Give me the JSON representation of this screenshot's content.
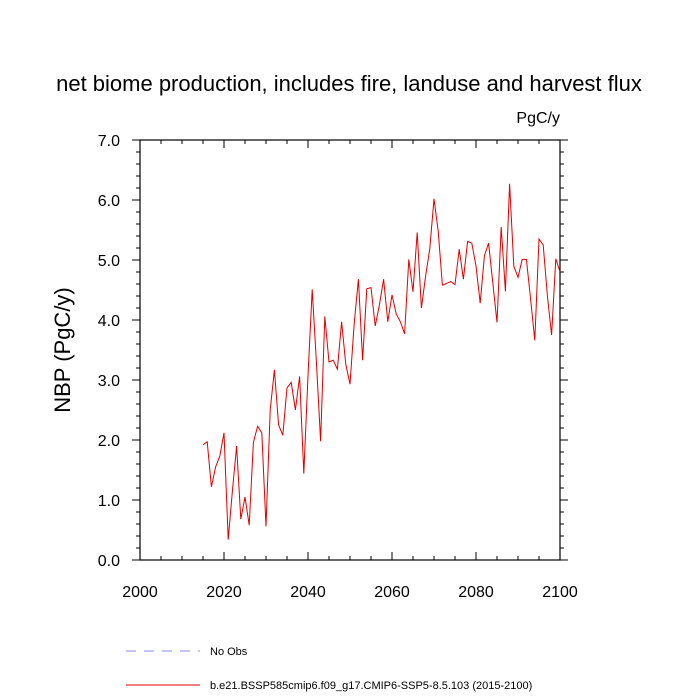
{
  "chart_data": {
    "type": "line",
    "title": "net biome production, includes fire, landuse and harvest flux",
    "units": "PgC/y",
    "ylabel": "NBP  (PgC/y)",
    "xlabel": "",
    "xlim": [
      2000,
      2100
    ],
    "ylim": [
      0.0,
      7.0
    ],
    "xticks": [
      2000,
      2020,
      2040,
      2060,
      2080,
      2100
    ],
    "xtick_labels": [
      "2000",
      "2020",
      "2040",
      "2060",
      "2080",
      "2100"
    ],
    "yticks": [
      0.0,
      1.0,
      2.0,
      3.0,
      4.0,
      5.0,
      6.0,
      7.0
    ],
    "ytick_labels": [
      "0.0",
      "1.0",
      "2.0",
      "3.0",
      "4.0",
      "5.0",
      "6.0",
      "7.0"
    ],
    "grid": false,
    "legend_position": "bottom",
    "series": [
      {
        "name": "b.e21.BSSP585cmip6.f09_g17.CMIP6-SSP5-8.5.103 (2015-2100)",
        "color": "#e00000",
        "style": "solid",
        "x": [
          2015,
          2016,
          2017,
          2018,
          2019,
          2020,
          2021,
          2022,
          2023,
          2024,
          2025,
          2026,
          2027,
          2028,
          2029,
          2030,
          2031,
          2032,
          2033,
          2034,
          2035,
          2036,
          2037,
          2038,
          2039,
          2040,
          2041,
          2042,
          2043,
          2044,
          2045,
          2046,
          2047,
          2048,
          2049,
          2050,
          2051,
          2052,
          2053,
          2054,
          2055,
          2056,
          2057,
          2058,
          2059,
          2060,
          2061,
          2062,
          2063,
          2064,
          2065,
          2066,
          2067,
          2068,
          2069,
          2070,
          2071,
          2072,
          2073,
          2074,
          2075,
          2076,
          2077,
          2078,
          2079,
          2080,
          2081,
          2082,
          2083,
          2084,
          2085,
          2086,
          2087,
          2088,
          2089,
          2090,
          2091,
          2092,
          2093,
          2094,
          2095,
          2096,
          2097,
          2098,
          2099,
          2100
        ],
        "values": [
          1.92,
          1.97,
          1.22,
          1.55,
          1.73,
          2.12,
          0.34,
          1.15,
          1.9,
          0.68,
          1.05,
          0.58,
          1.96,
          2.23,
          2.12,
          0.56,
          2.5,
          3.17,
          2.25,
          2.08,
          2.87,
          2.96,
          2.5,
          3.06,
          1.44,
          3.07,
          4.51,
          3.3,
          1.98,
          4.06,
          3.3,
          3.33,
          3.18,
          3.97,
          3.26,
          2.93,
          3.94,
          4.68,
          3.33,
          4.52,
          4.54,
          3.9,
          4.25,
          4.68,
          3.97,
          4.42,
          4.1,
          3.97,
          3.77,
          5.01,
          4.47,
          5.46,
          4.2,
          4.73,
          5.19,
          6.02,
          5.48,
          4.58,
          4.61,
          4.64,
          4.59,
          5.18,
          4.68,
          5.31,
          5.28,
          4.9,
          4.28,
          5.07,
          5.28,
          4.62,
          3.96,
          5.55,
          4.48,
          6.27,
          4.9,
          4.71,
          5.01,
          5.01,
          4.35,
          3.66,
          5.35,
          5.25,
          4.4,
          3.75,
          5.02,
          4.8
        ]
      },
      {
        "name": "No Obs",
        "color": "#8a8aee",
        "style": "dashed",
        "x": [],
        "values": []
      }
    ]
  }
}
